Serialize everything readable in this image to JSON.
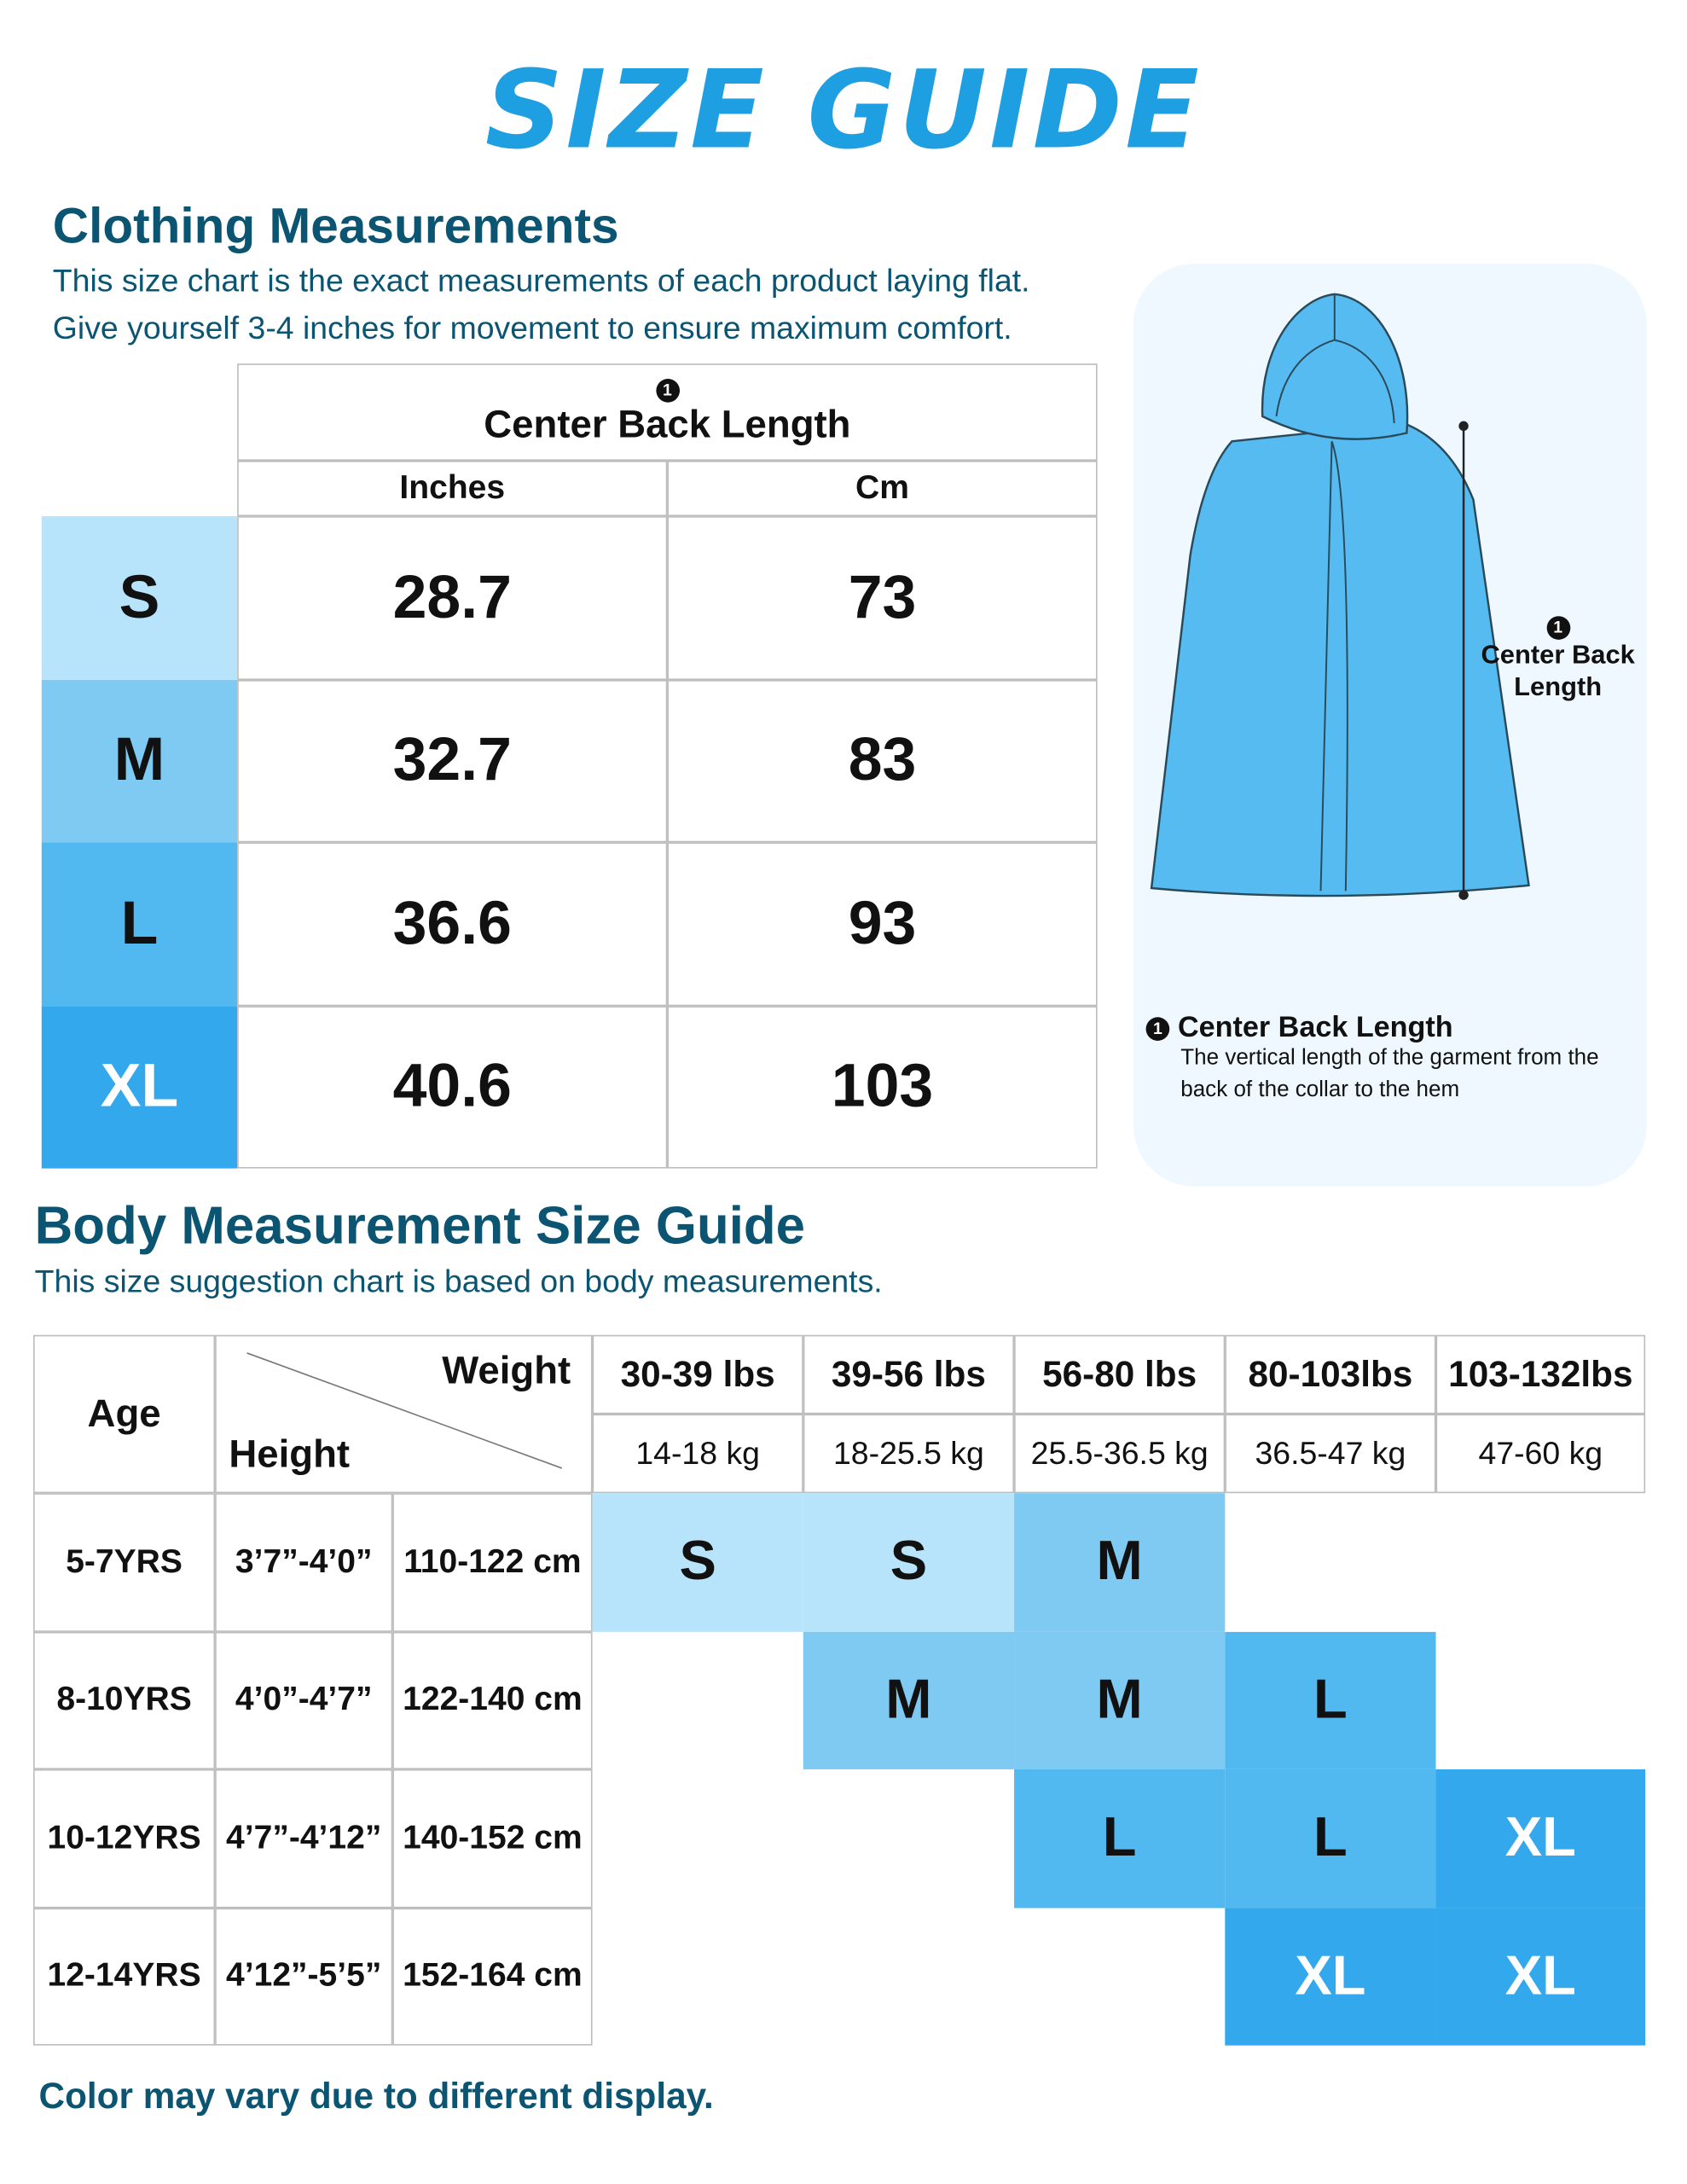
{
  "title": "SIZE GUIDE",
  "callout_number": "1",
  "size_colors": {
    "S": {
      "fill": "#b8e4fb",
      "text": "#111111"
    },
    "M": {
      "fill": "#7fcaf3",
      "text": "#111111"
    },
    "L": {
      "fill": "#52b9f0",
      "text": "#111111"
    },
    "XL": {
      "fill": "#34a8ec",
      "text": "#ffffff"
    }
  },
  "clothing": {
    "heading": "Clothing Measurements",
    "description": [
      "This size chart is the exact measurements of each product laying flat.",
      "Give yourself 3-4 inches for movement to ensure maximum comfort."
    ],
    "measure_label": "Center Back Length",
    "columns": [
      "Inches",
      "Cm"
    ],
    "rows": [
      {
        "size": "S",
        "inches": 28.7,
        "cm": 73
      },
      {
        "size": "M",
        "inches": 32.7,
        "cm": 83
      },
      {
        "size": "L",
        "inches": 36.6,
        "cm": 93
      },
      {
        "size": "XL",
        "inches": 40.6,
        "cm": 103
      }
    ]
  },
  "diagram": {
    "label_lines": [
      "Center Back",
      "Length"
    ],
    "note_title": "Center Back Length",
    "note_lines": [
      "The vertical length of the garment from the",
      "back of the collar to the hem"
    ]
  },
  "body": {
    "heading": "Body Measurement Size Guide",
    "description": "This size suggestion chart is based on body measurements.",
    "age_header": "Age",
    "weight_header": "Weight",
    "height_header": "Height",
    "weights_lbs": [
      "30-39 lbs",
      "39-56 lbs",
      "56-80 lbs",
      "80-103lbs",
      "103-132lbs"
    ],
    "weights_kg": [
      "14-18 kg",
      "18-25.5 kg",
      "25.5-36.5 kg",
      "36.5-47 kg",
      "47-60 kg"
    ],
    "rows": [
      {
        "age": "5-7YRS",
        "height_ft": "3’7”-4’0”",
        "height_cm": "110-122 cm",
        "sizes": [
          "S",
          "S",
          "M",
          null,
          null
        ]
      },
      {
        "age": "8-10YRS",
        "height_ft": "4’0”-4’7”",
        "height_cm": "122-140 cm",
        "sizes": [
          null,
          "M",
          "M",
          "L",
          null
        ]
      },
      {
        "age": "10-12YRS",
        "height_ft": "4’7”-4’12”",
        "height_cm": "140-152 cm",
        "sizes": [
          null,
          null,
          "L",
          "L",
          "XL"
        ]
      },
      {
        "age": "12-14YRS",
        "height_ft": "4’12”-5’5”",
        "height_cm": "152-164 cm",
        "sizes": [
          null,
          null,
          null,
          "XL",
          "XL"
        ]
      }
    ]
  },
  "footer": "Color may vary due to different display."
}
